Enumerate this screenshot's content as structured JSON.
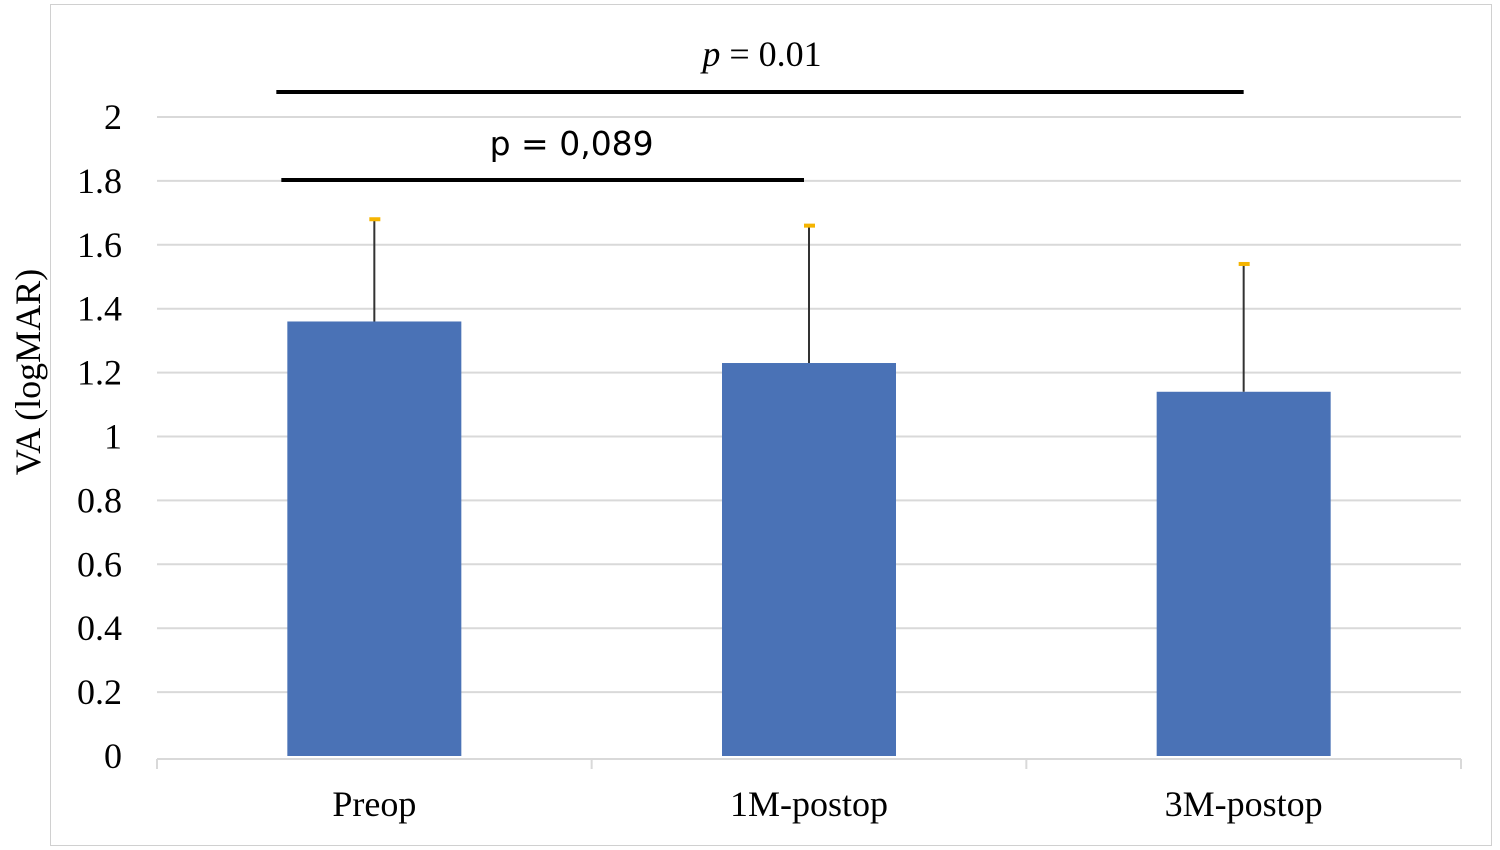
{
  "chart_data": {
    "type": "bar",
    "categories": [
      "Preop",
      "1M-postop",
      "3M-postop"
    ],
    "values": [
      1.36,
      1.23,
      1.14
    ],
    "error_upper": [
      1.68,
      1.66,
      1.54
    ],
    "ylabel": "VA (logMAR)",
    "xlabel": "",
    "ylim": [
      0,
      2
    ],
    "yticks": [
      "0",
      "0.2",
      "0.4",
      "0.6",
      "0.8",
      "1",
      "1.2",
      "1.4",
      "1.6",
      "1.8",
      "2"
    ],
    "grid": true,
    "colors": {
      "bar": "#4A72B6",
      "error_bar": "#333333",
      "error_cap": "#F5B400",
      "gridline": "#d9d9d9",
      "sig_line": "#000000"
    },
    "annotations": [
      {
        "text": "p = 0,089",
        "from_category": 0,
        "to_category": 1,
        "style": "sans"
      },
      {
        "p_italic": "p",
        "rest": " = 0.01",
        "from_category": 0,
        "to_category": 2,
        "style": "serif"
      }
    ]
  }
}
